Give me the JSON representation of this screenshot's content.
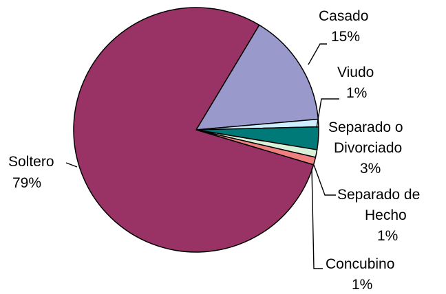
{
  "chart_data": {
    "type": "pie",
    "title": "",
    "slices": [
      {
        "label": "Casado",
        "value": 15,
        "value_label": "15%",
        "color": "#9999cc"
      },
      {
        "label": "Viudo",
        "value": 1,
        "value_label": "1%",
        "color": "#cceeff"
      },
      {
        "label": "Separado o Divorciado",
        "value": 3,
        "value_label": "3%",
        "color": "#007a78"
      },
      {
        "label": "Separado de Hecho",
        "value": 1,
        "value_label": "1%",
        "color": "#d9f0d9"
      },
      {
        "label": "Concubino",
        "value": 1,
        "value_label": "1%",
        "color": "#f08080"
      },
      {
        "label": "Soltero",
        "value": 79,
        "value_label": "79%",
        "color": "#993366"
      }
    ],
    "legend": "none",
    "labels": {
      "casado": [
        "Casado",
        "15%"
      ],
      "viudo": [
        "Viudo",
        "1%"
      ],
      "separado_divorciado": [
        "Separado o",
        "Divorciado",
        "3%"
      ],
      "separado_hecho": [
        "Separado de",
        "Hecho",
        "1%"
      ],
      "concubino": [
        "Concubino",
        "1%"
      ],
      "soltero": [
        "Soltero",
        "79%"
      ]
    }
  }
}
